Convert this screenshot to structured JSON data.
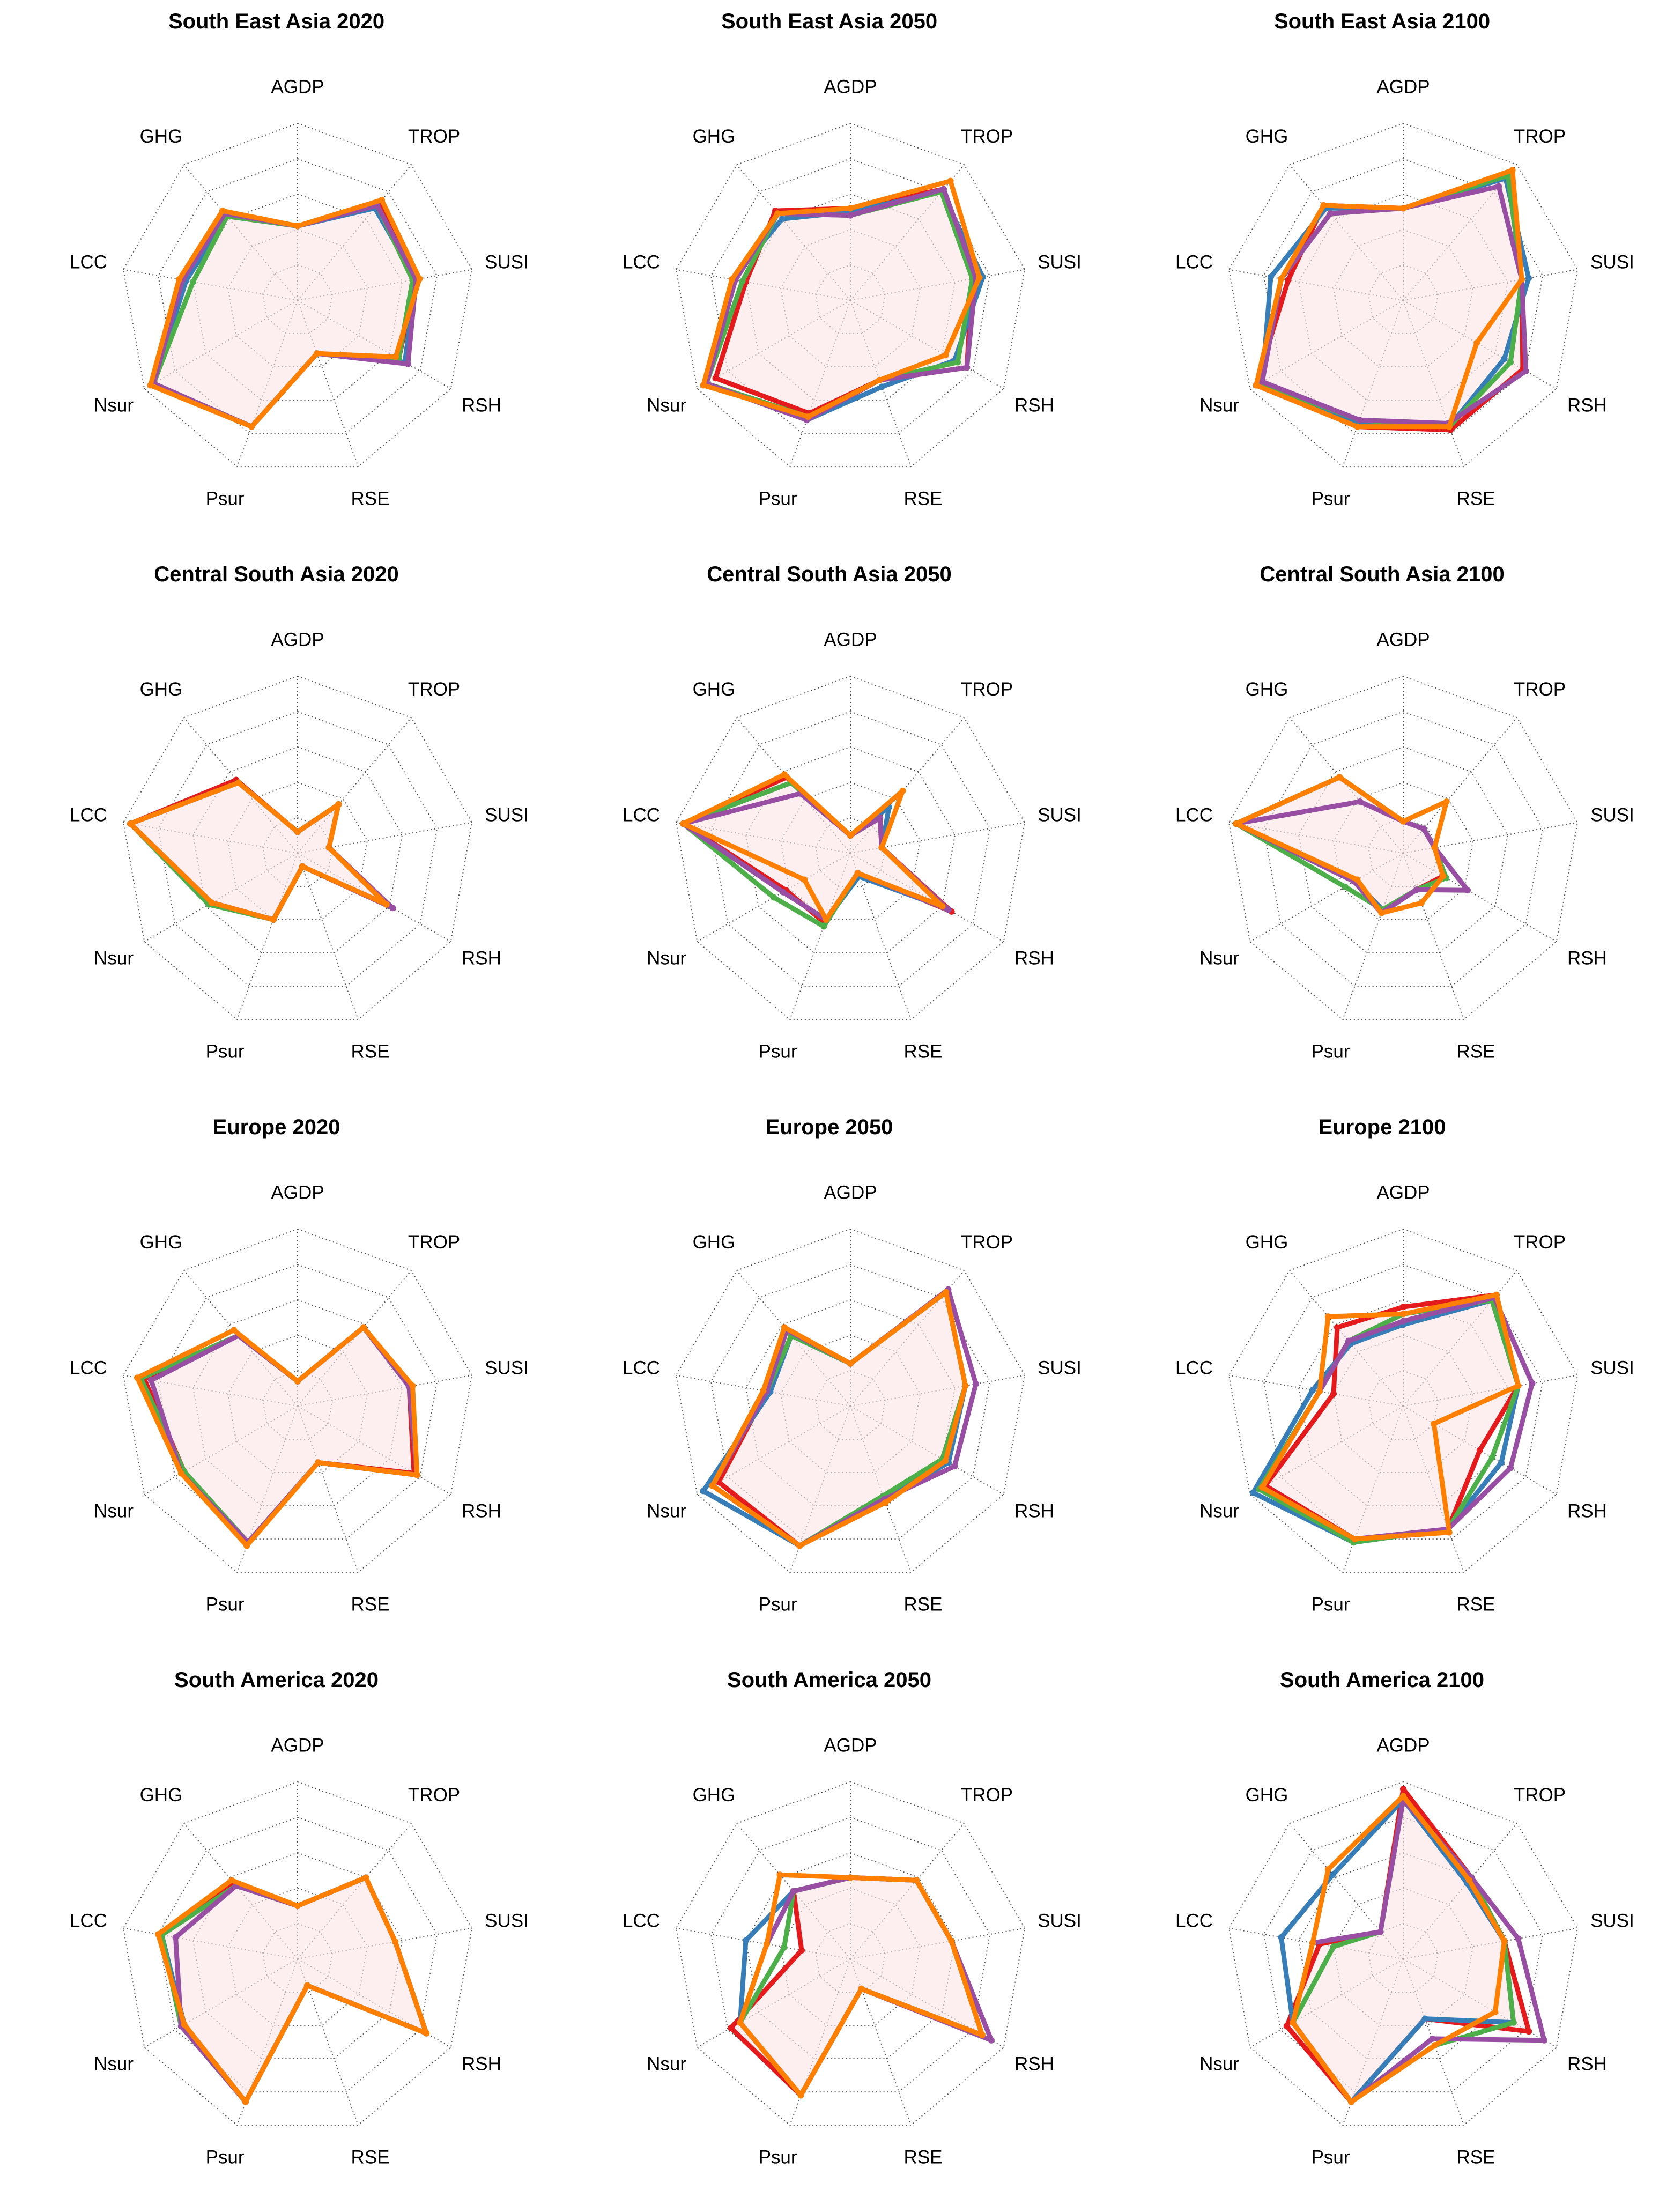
{
  "chart_data": {
    "type": "radar",
    "axes": [
      "AGDP",
      "TROP",
      "SUSI",
      "RSH",
      "RSE",
      "Psur",
      "Nsur",
      "LCC",
      "GHG"
    ],
    "rlim": [
      0,
      5
    ],
    "grid": true,
    "legend": "none",
    "series_colors": [
      "#E41A1C",
      "#377EB8",
      "#4DAF4A",
      "#984EA3",
      "#FF7F00"
    ],
    "panels": [
      {
        "title": "South East Asia 2020",
        "series": [
          [
            2.1,
            3.6,
            3.4,
            3.3,
            1.6,
            3.8,
            4.7,
            3.3,
            3.2
          ],
          [
            2.1,
            3.4,
            3.4,
            3.5,
            1.6,
            3.8,
            4.7,
            3.2,
            3.1
          ],
          [
            2.1,
            3.5,
            3.3,
            3.3,
            1.6,
            3.8,
            4.7,
            3.0,
            3.1
          ],
          [
            2.1,
            3.5,
            3.4,
            3.6,
            1.6,
            3.8,
            4.7,
            3.3,
            3.2
          ],
          [
            2.1,
            3.7,
            3.5,
            3.2,
            1.6,
            3.8,
            4.8,
            3.4,
            3.3
          ]
        ]
      },
      {
        "title": "South East Asia 2050",
        "series": [
          [
            2.6,
            4.1,
            3.5,
            3.8,
            2.4,
            3.4,
            4.4,
            3.0,
            3.3
          ],
          [
            2.5,
            4.0,
            3.8,
            3.4,
            2.6,
            3.6,
            4.7,
            3.4,
            3.0
          ],
          [
            2.4,
            4.0,
            3.5,
            3.5,
            2.4,
            3.5,
            4.7,
            3.1,
            3.2
          ],
          [
            2.4,
            4.1,
            3.6,
            3.8,
            2.4,
            3.6,
            4.7,
            3.3,
            3.2
          ],
          [
            2.6,
            4.4,
            3.7,
            3.1,
            2.4,
            3.5,
            4.8,
            3.4,
            3.2
          ]
        ]
      },
      {
        "title": "South East Asia 2100",
        "series": [
          [
            2.6,
            4.6,
            3.4,
            3.9,
            3.9,
            3.8,
            4.8,
            3.3,
            3.5
          ],
          [
            2.6,
            4.5,
            3.6,
            3.3,
            3.8,
            3.7,
            4.6,
            3.8,
            3.4
          ],
          [
            2.6,
            4.6,
            3.4,
            3.5,
            3.8,
            3.6,
            4.7,
            3.5,
            3.2
          ],
          [
            2.6,
            4.2,
            3.4,
            4.0,
            3.7,
            3.6,
            4.6,
            3.5,
            3.2
          ],
          [
            2.6,
            4.8,
            3.4,
            2.4,
            3.8,
            3.8,
            4.8,
            3.5,
            3.5
          ]
        ]
      },
      {
        "title": "Central South Asia 2020",
        "series": [
          [
            0.6,
            1.8,
            0.9,
            2.9,
            0.4,
            2.0,
            2.8,
            4.8,
            2.7
          ],
          [
            0.6,
            1.8,
            0.9,
            3.0,
            0.4,
            2.0,
            2.8,
            4.8,
            2.6
          ],
          [
            0.6,
            1.8,
            0.9,
            3.0,
            0.4,
            2.0,
            2.9,
            4.8,
            2.6
          ],
          [
            0.6,
            1.8,
            0.9,
            3.1,
            0.4,
            2.0,
            2.8,
            4.8,
            2.6
          ],
          [
            0.6,
            1.8,
            0.9,
            2.9,
            0.4,
            2.0,
            2.8,
            4.8,
            2.6
          ]
        ]
      },
      {
        "title": "Central South Asia 2050",
        "series": [
          [
            0.5,
            1.3,
            0.9,
            3.3,
            0.6,
            2.1,
            2.1,
            4.8,
            2.8
          ],
          [
            0.5,
            1.7,
            0.9,
            3.1,
            0.7,
            2.0,
            2.2,
            4.8,
            2.6
          ],
          [
            0.5,
            1.3,
            0.9,
            3.1,
            0.6,
            2.2,
            2.5,
            4.8,
            2.6
          ],
          [
            0.5,
            1.3,
            0.9,
            3.2,
            0.6,
            2.0,
            2.2,
            4.8,
            2.2
          ],
          [
            0.5,
            2.3,
            0.9,
            3.0,
            0.6,
            2.0,
            1.5,
            4.8,
            2.9
          ]
        ]
      },
      {
        "title": "Central South Asia 2100",
        "series": [
          [
            0.9,
            0.9,
            0.9,
            1.3,
            1.1,
            1.7,
            1.6,
            4.8,
            2.8
          ],
          [
            0.9,
            0.9,
            0.9,
            1.4,
            1.1,
            1.7,
            1.6,
            4.8,
            2.8
          ],
          [
            0.9,
            0.9,
            0.9,
            1.4,
            1.1,
            1.7,
            1.9,
            4.8,
            2.8
          ],
          [
            0.9,
            0.9,
            0.9,
            2.1,
            1.1,
            1.8,
            1.6,
            4.8,
            1.9
          ],
          [
            0.9,
            1.9,
            0.9,
            1.3,
            1.5,
            1.8,
            1.5,
            4.8,
            2.8
          ]
        ]
      },
      {
        "title": "Europe 2020",
        "series": [
          [
            0.7,
            2.9,
            3.2,
            3.8,
            1.7,
            4.1,
            3.7,
            4.4,
            2.6
          ],
          [
            0.7,
            2.9,
            3.2,
            3.9,
            1.7,
            4.1,
            3.7,
            4.5,
            2.6
          ],
          [
            0.7,
            2.9,
            3.2,
            3.9,
            1.7,
            4.1,
            3.7,
            4.5,
            2.6
          ],
          [
            0.7,
            2.9,
            3.2,
            3.9,
            1.7,
            4.1,
            3.8,
            4.2,
            2.6
          ],
          [
            0.7,
            2.9,
            3.3,
            3.9,
            1.7,
            4.2,
            3.8,
            4.6,
            2.8
          ]
        ]
      },
      {
        "title": "Europe 2050",
        "series": [
          [
            1.2,
            4.2,
            3.3,
            3.0,
            2.9,
            4.2,
            4.3,
            2.4,
            2.9
          ],
          [
            1.2,
            4.2,
            3.3,
            3.2,
            2.8,
            4.2,
            4.8,
            2.3,
            2.6
          ],
          [
            1.2,
            4.2,
            3.3,
            3.0,
            2.7,
            4.2,
            4.5,
            2.4,
            2.6
          ],
          [
            1.2,
            4.3,
            3.6,
            3.4,
            2.8,
            4.2,
            4.5,
            2.4,
            2.8
          ],
          [
            1.2,
            4.2,
            3.3,
            3.1,
            2.9,
            4.2,
            4.5,
            2.5,
            2.9
          ]
        ]
      },
      {
        "title": "Europe 2100",
        "series": [
          [
            2.8,
            4.1,
            3.3,
            2.5,
            3.7,
            4.0,
            4.5,
            2.0,
            2.9
          ],
          [
            2.3,
            3.9,
            3.3,
            3.2,
            3.7,
            4.1,
            4.9,
            2.6,
            2.3
          ],
          [
            2.6,
            3.9,
            3.3,
            2.9,
            3.7,
            4.1,
            4.7,
            2.4,
            2.4
          ],
          [
            2.4,
            4.0,
            3.7,
            3.5,
            3.7,
            4.0,
            4.6,
            2.4,
            2.4
          ],
          [
            2.6,
            4.1,
            3.3,
            1.0,
            3.8,
            4.0,
            4.6,
            2.4,
            3.3
          ]
        ]
      },
      {
        "title": "South America 2020",
        "series": [
          [
            1.5,
            3.0,
            2.8,
            4.2,
            0.8,
            4.3,
            3.7,
            3.9,
            2.8
          ],
          [
            1.5,
            3.0,
            2.8,
            4.2,
            0.8,
            4.3,
            3.7,
            3.9,
            2.7
          ],
          [
            1.5,
            3.0,
            2.8,
            4.2,
            0.8,
            4.3,
            3.8,
            3.9,
            2.7
          ],
          [
            1.5,
            3.0,
            2.8,
            4.2,
            0.8,
            4.3,
            3.8,
            3.5,
            2.7
          ],
          [
            1.5,
            3.0,
            2.8,
            4.2,
            0.8,
            4.3,
            3.7,
            4.0,
            2.9
          ]
        ]
      },
      {
        "title": "South America 2050",
        "series": [
          [
            2.3,
            2.9,
            2.9,
            4.3,
            0.9,
            4.1,
            3.9,
            1.4,
            2.5
          ],
          [
            2.3,
            2.9,
            2.9,
            4.3,
            0.9,
            4.1,
            3.6,
            3.0,
            2.5
          ],
          [
            2.3,
            2.9,
            2.9,
            4.3,
            0.9,
            4.1,
            3.6,
            1.9,
            2.5
          ],
          [
            2.3,
            2.9,
            2.9,
            4.6,
            0.9,
            4.1,
            3.6,
            2.4,
            2.5
          ],
          [
            2.3,
            2.9,
            2.9,
            4.3,
            0.9,
            4.1,
            3.6,
            2.4,
            3.1
          ]
        ]
      },
      {
        "title": "South America 2100",
        "series": [
          [
            4.8,
            3.0,
            2.9,
            4.1,
            1.8,
            4.3,
            3.8,
            2.4,
            1.0
          ],
          [
            4.5,
            2.8,
            2.9,
            3.6,
            1.8,
            4.3,
            3.6,
            3.5,
            3.1
          ],
          [
            4.5,
            3.0,
            2.9,
            3.6,
            2.6,
            4.3,
            3.6,
            2.0,
            1.0
          ],
          [
            4.5,
            3.0,
            3.3,
            4.6,
            2.4,
            4.3,
            3.6,
            2.6,
            1.0
          ],
          [
            4.6,
            2.9,
            2.9,
            3.0,
            2.6,
            4.3,
            3.6,
            2.6,
            3.3
          ]
        ]
      }
    ]
  }
}
